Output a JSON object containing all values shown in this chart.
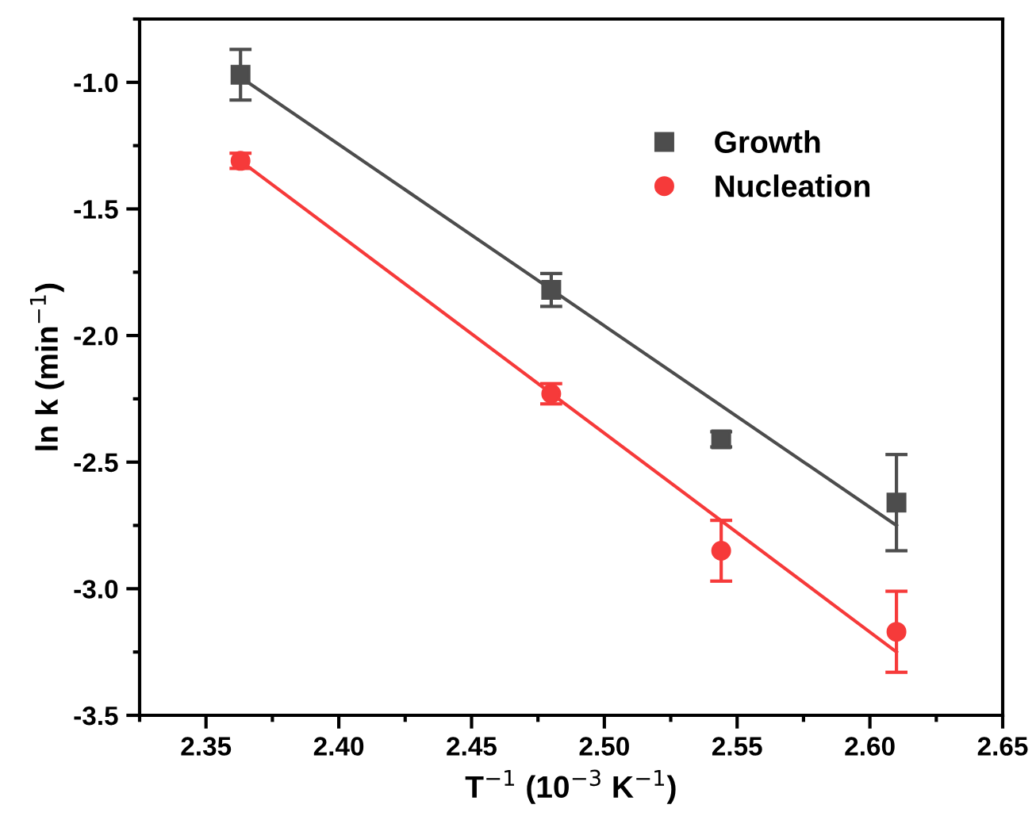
{
  "chart_data": {
    "type": "scatter",
    "xlabel": "T$^{−1}$ (10$^{−3}$ K$^{−1}$)",
    "ylabel": "ln k (min$^{−1}$)",
    "xlim": [
      2.325,
      2.65
    ],
    "xticks": [
      {
        "value": 2.35,
        "label": "2.35"
      },
      {
        "value": 2.4,
        "label": "2.40"
      },
      {
        "value": 2.45,
        "label": "2.45"
      },
      {
        "value": 2.5,
        "label": "2.50"
      },
      {
        "value": 2.55,
        "label": "2.55"
      },
      {
        "value": 2.6,
        "label": "2.60"
      },
      {
        "value": 2.65,
        "label": "2.65"
      }
    ],
    "ylim": [
      -3.5,
      -0.75
    ],
    "yticks": [
      {
        "value": -3.5,
        "label": "-3.5"
      },
      {
        "value": -3.0,
        "label": "-3.0"
      },
      {
        "value": -2.5,
        "label": "-2.5"
      },
      {
        "value": -2.0,
        "label": "-2.0"
      },
      {
        "value": -1.5,
        "label": "-1.5"
      },
      {
        "value": -1.0,
        "label": "-1.0"
      }
    ],
    "legend": "top right",
    "grid": false,
    "series": [
      {
        "name": "Growth",
        "marker": "square",
        "color": "#4d4d4d",
        "x": [
          2.363,
          2.48,
          2.544,
          2.61
        ],
        "values": [
          -0.97,
          -1.82,
          -2.41,
          -2.66
        ],
        "errors": [
          0.1,
          0.065,
          0.03,
          0.19
        ]
      },
      {
        "name": "Nucleation",
        "marker": "circle",
        "color": "#f63a3a",
        "x": [
          2.363,
          2.48,
          2.544,
          2.61
        ],
        "values": [
          -1.31,
          -2.23,
          -2.85,
          -3.17
        ],
        "errors": [
          0.03,
          0.04,
          0.12,
          0.16
        ]
      },
      {
        "type": "line",
        "marker": "none",
        "color": "#4d4d4d",
        "x": [
          2.363,
          2.61
        ],
        "values": [
          -0.98,
          -2.75
        ]
      },
      {
        "type": "line",
        "marker": "none",
        "color": "#f63a3a",
        "x": [
          2.363,
          2.61
        ],
        "values": [
          -1.31,
          -3.25
        ]
      }
    ]
  }
}
